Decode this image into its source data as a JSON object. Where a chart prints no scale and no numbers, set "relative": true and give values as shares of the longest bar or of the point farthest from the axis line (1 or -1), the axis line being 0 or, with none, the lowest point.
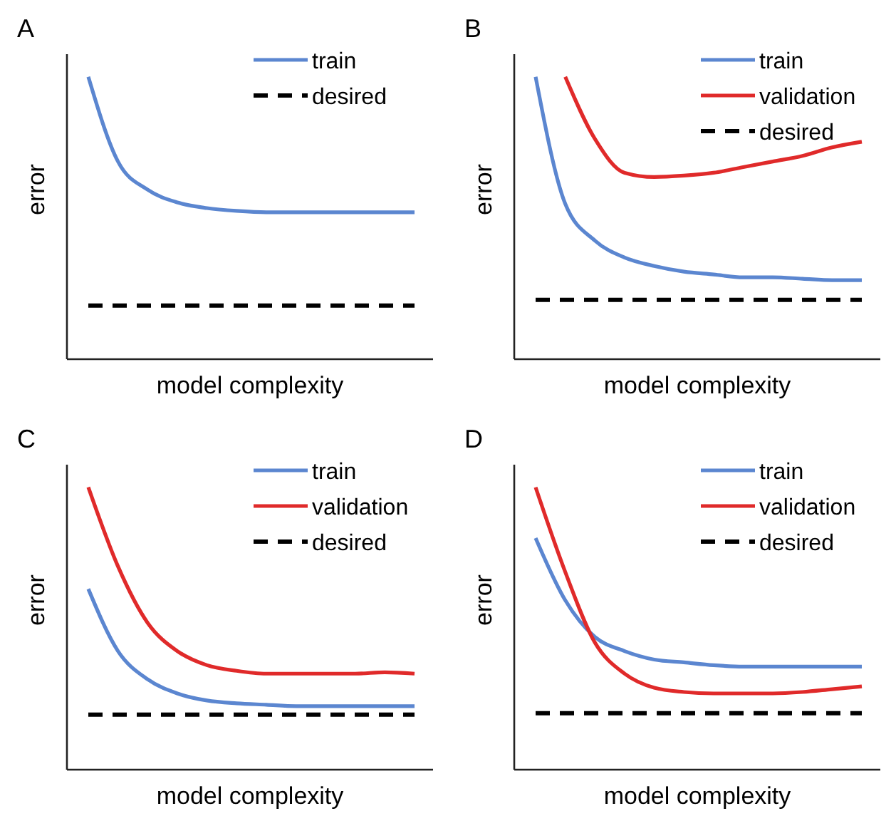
{
  "chart_data": [
    {
      "type": "line",
      "title": "A",
      "xlabel": "model complexity",
      "ylabel": "error",
      "relative": true,
      "legend": "top right",
      "categories": [
        null,
        null,
        null,
        null,
        null,
        null,
        null,
        null,
        null,
        null,
        null,
        null
      ],
      "series": [
        {
          "name": "train",
          "color": "#5b86d0",
          "values": [
            1,
            0.7,
            0.6,
            0.555,
            0.535,
            0.525,
            0.52,
            0.52,
            0.52,
            0.52,
            0.52,
            0.52
          ]
        },
        {
          "name": "desired",
          "color": "#000000",
          "line_style": "dashed",
          "values": [
            0.19,
            0.19,
            0.19,
            0.19,
            0.19,
            0.19,
            0.19,
            0.19,
            0.19,
            0.19,
            0.19,
            0.19
          ]
        }
      ]
    },
    {
      "type": "line",
      "title": "B",
      "xlabel": "model complexity",
      "ylabel": "error",
      "relative": true,
      "legend": "top right",
      "categories": [
        null,
        null,
        null,
        null,
        null,
        null,
        null,
        null,
        null,
        null,
        null,
        null
      ],
      "series": [
        {
          "name": "train",
          "color": "#5b86d0",
          "values": [
            1,
            0.55,
            0.42,
            0.36,
            0.33,
            0.31,
            0.3,
            0.29,
            0.29,
            0.285,
            0.28,
            0.28
          ]
        },
        {
          "name": "validation",
          "color": "#e02a2a",
          "values": [
            null,
            1,
            0.78,
            0.66,
            0.645,
            0.65,
            0.66,
            0.68,
            0.7,
            0.72,
            0.75,
            0.77
          ]
        },
        {
          "name": "desired",
          "color": "#000000",
          "line_style": "dashed",
          "values": [
            0.21,
            0.21,
            0.21,
            0.21,
            0.21,
            0.21,
            0.21,
            0.21,
            0.21,
            0.21,
            0.21,
            0.21
          ]
        }
      ]
    },
    {
      "type": "line",
      "title": "C",
      "xlabel": "model complexity",
      "ylabel": "error",
      "relative": true,
      "legend": "top right",
      "categories": [
        null,
        null,
        null,
        null,
        null,
        null,
        null,
        null,
        null,
        null,
        null,
        null
      ],
      "series": [
        {
          "name": "train",
          "color": "#5b86d0",
          "values": [
            0.64,
            0.42,
            0.32,
            0.27,
            0.245,
            0.235,
            0.23,
            0.225,
            0.225,
            0.225,
            0.225,
            0.225
          ]
        },
        {
          "name": "validation",
          "color": "#e02a2a",
          "values": [
            1,
            0.72,
            0.52,
            0.42,
            0.37,
            0.35,
            0.34,
            0.34,
            0.34,
            0.34,
            0.345,
            0.34
          ]
        },
        {
          "name": "desired",
          "color": "#000000",
          "line_style": "dashed",
          "values": [
            0.195,
            0.195,
            0.195,
            0.195,
            0.195,
            0.195,
            0.195,
            0.195,
            0.195,
            0.195,
            0.195,
            0.195
          ]
        }
      ]
    },
    {
      "type": "line",
      "title": "D",
      "xlabel": "model complexity",
      "ylabel": "error",
      "relative": true,
      "legend": "top right",
      "categories": [
        null,
        null,
        null,
        null,
        null,
        null,
        null,
        null,
        null,
        null,
        null,
        null
      ],
      "series": [
        {
          "name": "train",
          "color": "#5b86d0",
          "values": [
            0.82,
            0.6,
            0.47,
            0.42,
            0.39,
            0.38,
            0.37,
            0.365,
            0.365,
            0.365,
            0.365,
            0.365
          ]
        },
        {
          "name": "validation",
          "color": "#e02a2a",
          "values": [
            1,
            0.7,
            0.45,
            0.34,
            0.29,
            0.275,
            0.27,
            0.27,
            0.27,
            0.275,
            0.285,
            0.295
          ]
        },
        {
          "name": "desired",
          "color": "#000000",
          "line_style": "dashed",
          "values": [
            0.2,
            0.2,
            0.2,
            0.2,
            0.2,
            0.2,
            0.2,
            0.2,
            0.2,
            0.2,
            0.2,
            0.2
          ]
        }
      ]
    }
  ]
}
